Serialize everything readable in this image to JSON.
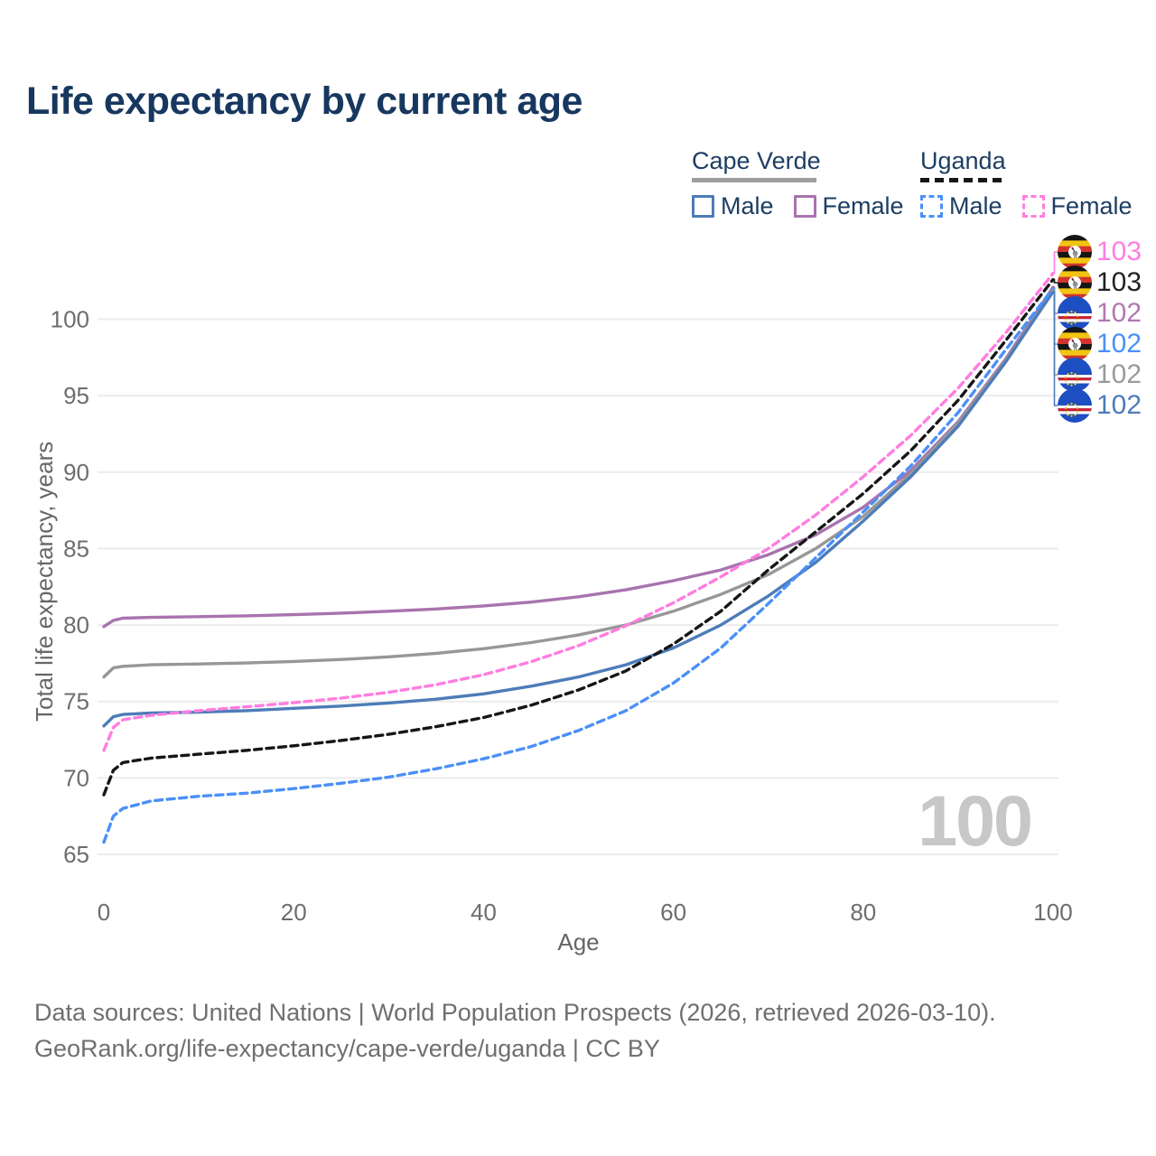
{
  "title": "Life expectancy by current age",
  "watermark": "100",
  "legend": {
    "groups": [
      {
        "label": "Cape Verde",
        "line_style": "solid",
        "items": [
          {
            "label": "Male",
            "color": "#4d7cb8"
          },
          {
            "label": "Female",
            "color": "#a873ae"
          }
        ]
      },
      {
        "label": "Uganda",
        "line_style": "dashed",
        "items": [
          {
            "label": "Male",
            "color": "#4a90f8"
          },
          {
            "label": "Female",
            "color": "#ff7de0"
          }
        ]
      }
    ]
  },
  "right_labels": [
    {
      "flag": "uganda",
      "value": "103",
      "color": "#ff7de0"
    },
    {
      "flag": "uganda",
      "value": "103",
      "color": "#222222"
    },
    {
      "flag": "cape-verde",
      "value": "102",
      "color": "#b078b2"
    },
    {
      "flag": "uganda",
      "value": "102",
      "color": "#4a90f8"
    },
    {
      "flag": "cape-verde",
      "value": "102",
      "color": "#9a9a9a"
    },
    {
      "flag": "cape-verde",
      "value": "102",
      "color": "#4d7cb8"
    }
  ],
  "footer": {
    "line1": "Data sources: United Nations | World Population Prospects (2026, retrieved 2026-03-10).",
    "line2": "GeoRank.org/life-expectancy/cape-verde/uganda | CC BY"
  },
  "chart_data": {
    "type": "line",
    "title": "Life expectancy by current age",
    "xlabel": "Age",
    "ylabel": "Total life expectancy, years",
    "xlim": [
      0,
      100
    ],
    "ylim": [
      65,
      103
    ],
    "xticks": [
      0,
      20,
      40,
      60,
      80,
      100
    ],
    "yticks": [
      65,
      70,
      75,
      80,
      85,
      90,
      95,
      100
    ],
    "grid": "horizontal",
    "legend_position": "top-right",
    "ages": [
      0,
      1,
      2,
      5,
      10,
      15,
      20,
      25,
      30,
      35,
      40,
      45,
      50,
      55,
      60,
      65,
      70,
      75,
      80,
      85,
      90,
      95,
      100
    ],
    "series": [
      {
        "id": "cv_female",
        "name": "Cape Verde Female",
        "country": "Cape Verde",
        "sex": "Female",
        "color": "#a873ae",
        "dash": false,
        "label_row": 2,
        "end_label": "102",
        "values": [
          79.9,
          80.3,
          80.45,
          80.5,
          80.55,
          80.6,
          80.68,
          80.78,
          80.9,
          81.05,
          81.25,
          81.5,
          81.85,
          82.3,
          82.9,
          83.6,
          84.6,
          85.9,
          87.7,
          90.1,
          93.3,
          97.4,
          102.1
        ]
      },
      {
        "id": "cv_total",
        "name": "Cape Verde Total",
        "country": "Cape Verde",
        "sex": "Total",
        "color": "#979797",
        "dash": false,
        "label_row": 4,
        "end_label": "102",
        "values": [
          76.6,
          77.2,
          77.3,
          77.4,
          77.45,
          77.52,
          77.62,
          77.75,
          77.92,
          78.15,
          78.45,
          78.85,
          79.35,
          80.0,
          80.9,
          82.0,
          83.3,
          85.0,
          87.1,
          89.9,
          93.2,
          97.3,
          101.9
        ]
      },
      {
        "id": "cv_male",
        "name": "Cape Verde Male",
        "country": "Cape Verde",
        "sex": "Male",
        "color": "#4d7cb8",
        "dash": false,
        "label_row": 5,
        "end_label": "102",
        "values": [
          73.4,
          74.0,
          74.15,
          74.25,
          74.3,
          74.4,
          74.55,
          74.7,
          74.9,
          75.15,
          75.5,
          76.0,
          76.6,
          77.4,
          78.5,
          80.0,
          81.9,
          84.1,
          86.8,
          89.7,
          93.0,
          97.2,
          101.8
        ]
      },
      {
        "id": "ug_female",
        "name": "Uganda Female",
        "country": "Uganda",
        "sex": "Female",
        "color": "#ff7de0",
        "dash": true,
        "label_row": 0,
        "end_label": "103",
        "values": [
          71.8,
          73.3,
          73.8,
          74.1,
          74.4,
          74.65,
          74.92,
          75.22,
          75.6,
          76.1,
          76.75,
          77.6,
          78.65,
          79.95,
          81.45,
          83.15,
          85.0,
          87.2,
          89.7,
          92.4,
          95.5,
          99.1,
          103.0
        ]
      },
      {
        "id": "ug_total",
        "name": "Uganda Total",
        "country": "Uganda",
        "sex": "Total",
        "color": "#161616",
        "dash": true,
        "label_row": 1,
        "end_label": "103",
        "values": [
          68.9,
          70.5,
          71.0,
          71.3,
          71.55,
          71.8,
          72.1,
          72.45,
          72.85,
          73.35,
          73.95,
          74.75,
          75.75,
          77.0,
          78.75,
          80.9,
          83.6,
          86.1,
          88.6,
          91.4,
          94.7,
          98.6,
          102.6
        ]
      },
      {
        "id": "ug_male",
        "name": "Uganda Male",
        "country": "Uganda",
        "sex": "Male",
        "color": "#4a90f8",
        "dash": true,
        "label_row": 3,
        "end_label": "102",
        "values": [
          65.8,
          67.5,
          68.0,
          68.5,
          68.8,
          69.0,
          69.3,
          69.65,
          70.05,
          70.6,
          71.25,
          72.05,
          73.1,
          74.4,
          76.2,
          78.5,
          81.4,
          84.4,
          87.4,
          90.4,
          93.9,
          98.0,
          102.0
        ]
      }
    ]
  }
}
